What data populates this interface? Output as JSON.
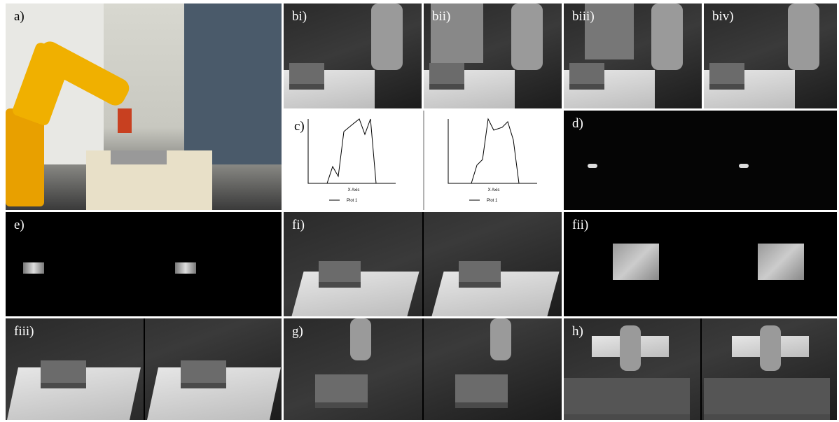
{
  "panels": {
    "a": "a)",
    "bi": "bi)",
    "bii": "bii)",
    "biii": "biii)",
    "biv": "biv)",
    "c": "c)",
    "d": "d)",
    "e": "e)",
    "fi": "fi)",
    "fii": "fii)",
    "fiii": "fiii)",
    "g": "g)",
    "h": "h)"
  },
  "plots": [
    {
      "x_label": "X Axis",
      "legend": "Plot 1"
    },
    {
      "x_label": "X Axis",
      "legend": "Plot 1"
    }
  ]
}
